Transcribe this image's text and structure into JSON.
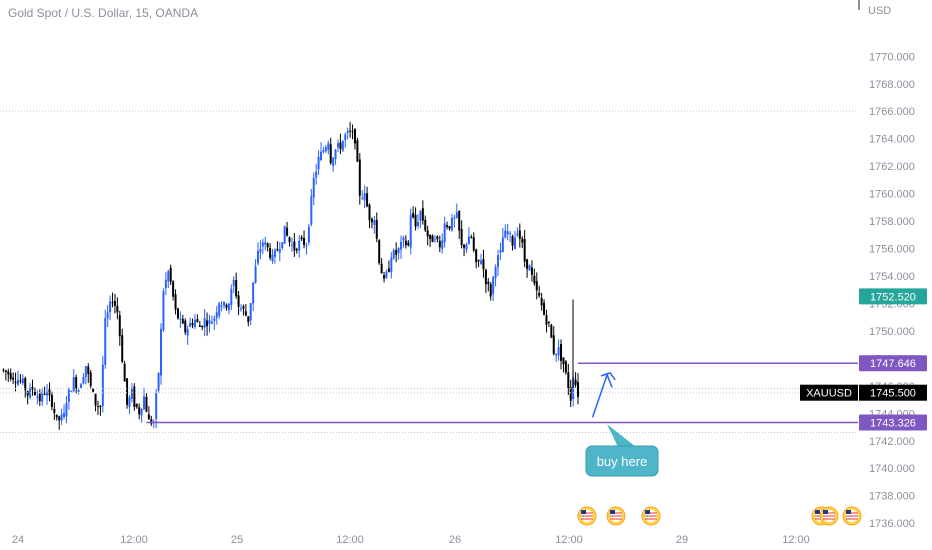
{
  "header": {
    "title": "Gold Spot / U.S. Dollar, 15, OANDA",
    "unit": "USD"
  },
  "colors": {
    "up": "#2962ff",
    "down": "#000000",
    "level": "#7e57c2",
    "teal": "#26a69a",
    "callout": "#4fb5c8",
    "grid": "#c5c8cf",
    "axis_text": "#8a8f9c"
  },
  "chart_data": {
    "type": "candlestick",
    "ylim": [
      1735.5,
      1772.5
    ],
    "ytick_labels": [
      "1770.000",
      "1768.000",
      "1766.000",
      "1764.000",
      "1762.000",
      "1760.000",
      "1758.000",
      "1756.000",
      "1754.000",
      "1752.000",
      "1750.000",
      "1748.000",
      "1746.000",
      "1744.000",
      "1742.000",
      "1740.000",
      "1738.000",
      "1736.000"
    ],
    "xtick_labels": [
      {
        "label": "24",
        "x": 0.0
      },
      {
        "label": "12:00",
        "x": 48
      },
      {
        "label": "25",
        "x": 96
      },
      {
        "label": "12:00",
        "x": 144
      },
      {
        "label": "26",
        "x": 192
      },
      {
        "label": "12:00",
        "x": 240
      },
      {
        "label": "29",
        "x": 288
      },
      {
        "label": "12:00",
        "x": 336
      }
    ],
    "price_path": [
      [
        0,
        1747.2
      ],
      [
        3,
        1746.9
      ],
      [
        6,
        1746.6
      ],
      [
        9,
        1746.2
      ],
      [
        11,
        1745.4
      ],
      [
        13,
        1745.8
      ],
      [
        16,
        1745.0
      ],
      [
        18,
        1745.6
      ],
      [
        21,
        1744.8
      ],
      [
        23,
        1743.4
      ],
      [
        26,
        1743.8
      ],
      [
        27,
        1745.0
      ],
      [
        30,
        1746.4
      ],
      [
        32,
        1745.8
      ],
      [
        35,
        1747.5
      ],
      [
        37,
        1745.9
      ],
      [
        39,
        1744.7
      ],
      [
        41,
        1744.5
      ],
      [
        43,
        1750.6
      ],
      [
        46,
        1752.4
      ],
      [
        48,
        1751.4
      ],
      [
        50,
        1748.0
      ],
      [
        52,
        1744.6
      ],
      [
        54,
        1745.5
      ],
      [
        55,
        1744.7
      ],
      [
        57,
        1744.1
      ],
      [
        59,
        1745.2
      ],
      [
        61,
        1743.4
      ],
      [
        63,
        1743.4
      ],
      [
        65,
        1747.0
      ],
      [
        67,
        1753.0
      ],
      [
        69,
        1754.3
      ],
      [
        70,
        1753.5
      ],
      [
        72,
        1751.4
      ],
      [
        74,
        1750.6
      ],
      [
        76,
        1750.0
      ],
      [
        78,
        1750.5
      ],
      [
        80,
        1750.8
      ],
      [
        82,
        1750.3
      ],
      [
        84,
        1750.8
      ],
      [
        86,
        1750.6
      ],
      [
        88,
        1751.0
      ],
      [
        90,
        1752.2
      ],
      [
        92,
        1751.8
      ],
      [
        94,
        1752.1
      ],
      [
        96,
        1753.6
      ],
      [
        98,
        1751.8
      ],
      [
        100,
        1751.5
      ],
      [
        102,
        1750.8
      ],
      [
        104,
        1753.5
      ],
      [
        106,
        1755.6
      ],
      [
        108,
        1756.5
      ],
      [
        110,
        1756.0
      ],
      [
        112,
        1755.2
      ],
      [
        115,
        1756.3
      ],
      [
        117,
        1757.3
      ],
      [
        119,
        1756.5
      ],
      [
        121,
        1756.0
      ],
      [
        123,
        1756.4
      ],
      [
        126,
        1756.4
      ],
      [
        129,
        1761.0
      ],
      [
        131,
        1762.5
      ],
      [
        133,
        1763.2
      ],
      [
        135,
        1763.9
      ],
      [
        136,
        1762.5
      ],
      [
        138,
        1763.2
      ],
      [
        140,
        1763.5
      ],
      [
        142,
        1764.2
      ],
      [
        144,
        1764.4
      ],
      [
        146,
        1764.0
      ],
      [
        148,
        1760.0
      ],
      [
        150,
        1759.8
      ],
      [
        152,
        1758.3
      ],
      [
        154,
        1758.2
      ],
      [
        156,
        1755.2
      ],
      [
        158,
        1753.5
      ],
      [
        160,
        1754.6
      ],
      [
        161,
        1755.6
      ],
      [
        163,
        1755.6
      ],
      [
        164,
        1755.9
      ],
      [
        166,
        1756.5
      ],
      [
        168,
        1756.2
      ],
      [
        169,
        1758.6
      ],
      [
        171,
        1757.6
      ],
      [
        173,
        1758.7
      ],
      [
        175,
        1757.5
      ],
      [
        177,
        1756.4
      ],
      [
        179,
        1757.0
      ],
      [
        181,
        1756.0
      ],
      [
        183,
        1757.8
      ],
      [
        185,
        1757.7
      ],
      [
        188,
        1758.3
      ],
      [
        190,
        1756.1
      ],
      [
        192,
        1756.4
      ],
      [
        194,
        1756.8
      ],
      [
        196,
        1754.7
      ],
      [
        198,
        1755.3
      ],
      [
        200,
        1753.7
      ],
      [
        202,
        1752.7
      ],
      [
        204,
        1755.0
      ],
      [
        206,
        1755.6
      ],
      [
        207,
        1756.8
      ],
      [
        209,
        1757.2
      ],
      [
        211,
        1756.4
      ],
      [
        213,
        1757.4
      ],
      [
        215,
        1756.2
      ],
      [
        216,
        1755.1
      ],
      [
        218,
        1754.6
      ],
      [
        220,
        1753.2
      ],
      [
        222,
        1752.4
      ],
      [
        224,
        1751.2
      ],
      [
        226,
        1750.4
      ],
      [
        228,
        1748.5
      ],
      [
        230,
        1748.6
      ],
      [
        232,
        1747.6
      ],
      [
        234,
        1746.0
      ],
      [
        235,
        1745.1
      ],
      [
        236,
        1746.9
      ],
      [
        238,
        1745.4
      ]
    ],
    "levels": [
      {
        "value": 1766.0,
        "style": "dotted",
        "color": "#c5c8cf"
      },
      {
        "value": 1745.8,
        "style": "dotted",
        "color": "#c5c8cf"
      },
      {
        "value": 1745.5,
        "style": "dotted",
        "color": "#c5c8cf"
      },
      {
        "value": 1742.6,
        "style": "dotted",
        "color": "#c5c8cf"
      },
      {
        "value": 1747.646,
        "style": "solid",
        "color": "#7e57c2",
        "from_x": 238
      },
      {
        "value": 1743.326,
        "style": "solid",
        "color": "#7e57c2",
        "from_x": 60
      }
    ],
    "price_badges": [
      {
        "label": "1752.520",
        "value": 1752.52,
        "bg": "#26a69a"
      },
      {
        "label": "1747.646",
        "value": 1747.646,
        "bg": "#7e57c2"
      },
      {
        "label": "1743.326",
        "value": 1743.326,
        "bg": "#7e57c2"
      }
    ],
    "last_price": {
      "symbol": "XAUUSD",
      "label": "1745.500",
      "value": 1745.5
    },
    "arrow": {
      "points": [
        [
          244,
          1743.7
        ],
        [
          250,
          1746.8
        ],
        [
          252,
          1745.9
        ]
      ]
    },
    "callout": {
      "text": "buy here",
      "anchor_x": 250,
      "anchor_y": 1743.2
    }
  },
  "events": [
    {
      "x": 244
    },
    {
      "x": 256
    },
    {
      "x": 271
    },
    {
      "x": 342
    },
    {
      "x": 347
    },
    {
      "x": 356
    }
  ]
}
